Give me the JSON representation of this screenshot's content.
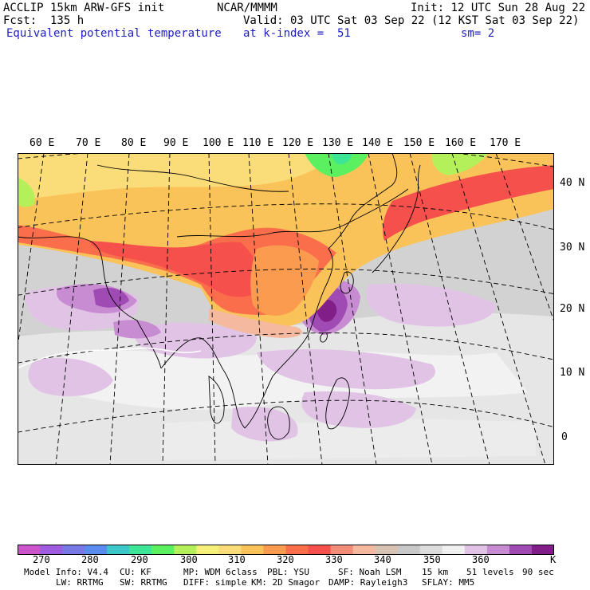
{
  "header": {
    "model_title": "ACCLIP 15km ARW-GFS init",
    "center": "NCAR/MMMM",
    "init": "Init: 12 UTC Sun 28 Aug 22",
    "forecast": "Fcst:  135 h",
    "valid": "Valid: 03 UTC Sat 03 Sep 22 (12 KST Sat 03 Sep 22)",
    "field_name": "Equivalent potential temperature",
    "level": "at k-index =  51",
    "smoothing": "sm= 2"
  },
  "map": {
    "longitude_labels": [
      "60 E",
      "70 E",
      "80 E",
      "90 E",
      "100 E",
      "110 E",
      "120 E",
      "130 E",
      "140 E",
      "150 E",
      "160 E",
      "170 E"
    ],
    "latitude_labels": [
      "40 N",
      "30 N",
      "20 N",
      "10 N",
      "0"
    ]
  },
  "colorbar": {
    "colors": [
      "#cc55cc",
      "#a05ce0",
      "#7878e6",
      "#5a8cf0",
      "#3cc8c8",
      "#3ce696",
      "#5af060",
      "#b4f05a",
      "#f5f07a",
      "#fadc78",
      "#fac35a",
      "#fa9b50",
      "#fa6e4b",
      "#f5504b",
      "#f08c78",
      "#f5b9a0",
      "#d7c3b4",
      "#c8c8c8",
      "#dcdcdc",
      "#f0f0f0",
      "#e1c3e6",
      "#c88cd2",
      "#a04bb4",
      "#821e87"
    ],
    "tick_labels": [
      "270",
      "280",
      "290",
      "300",
      "310",
      "320",
      "330",
      "340",
      "350",
      "360"
    ],
    "unit": "K"
  },
  "footer": {
    "line1": [
      "Model Info: V4.4",
      "CU: KF",
      "MP: WDM 6class",
      "PBL: YSU",
      "SF: Noah LSM",
      "15 km",
      "51 levels",
      "90 sec"
    ],
    "line2": [
      "LW: RRTMG",
      "SW: RRTMG",
      "DIFF: simple",
      "KM: 2D Smagor",
      "DAMP: Rayleigh3",
      "SFLAY: MM5"
    ]
  }
}
